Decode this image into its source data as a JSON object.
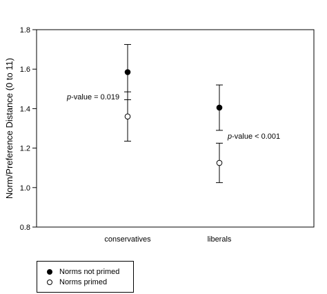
{
  "chart_data": {
    "type": "scatter",
    "ylabel": "Norm/Preference Distance (0 to 11)",
    "xlabel": "",
    "ylim": [
      0.8,
      1.8
    ],
    "yticks": [
      "0.8",
      "1.0",
      "1.2",
      "1.4",
      "1.6",
      "1.8"
    ],
    "categories": [
      "conservatives",
      "liberals"
    ],
    "series": [
      {
        "name": "Norms not primed",
        "marker": "filled",
        "values": [
          1.585,
          1.405
        ],
        "error_low": [
          1.445,
          1.29
        ],
        "error_high": [
          1.725,
          1.52
        ]
      },
      {
        "name": "Norms primed",
        "marker": "open",
        "values": [
          1.36,
          1.125
        ],
        "error_low": [
          1.235,
          1.025
        ],
        "error_high": [
          1.485,
          1.225
        ]
      }
    ],
    "annotations": [
      {
        "italic": "p",
        "rest": "-value = 0.019"
      },
      {
        "italic": "p",
        "rest": "-value < 0.001"
      }
    ],
    "grid": false,
    "legend_position": "bottom-left"
  },
  "colors": {
    "axis": "#000000",
    "filled_marker": "#000000",
    "open_marker": "#ffffff"
  }
}
